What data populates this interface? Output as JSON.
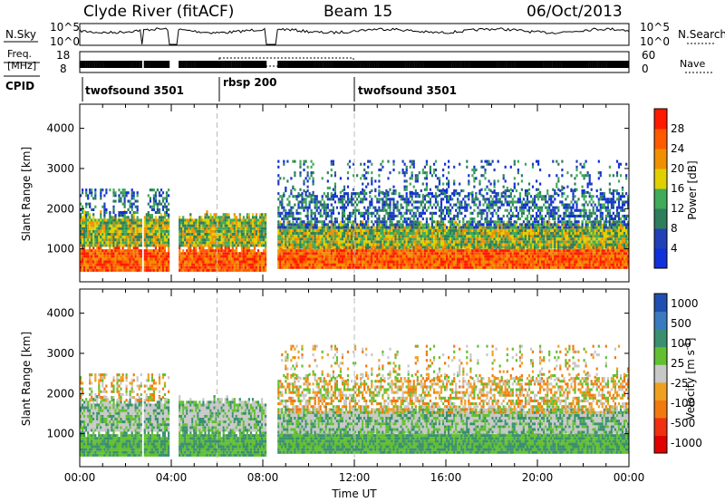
{
  "header": {
    "station": "Clyde River (fitACF)",
    "beam": "Beam 15",
    "date": "06/Oct/2013"
  },
  "noise_panel": {
    "left_label": "N.Sky",
    "right_label": "N.Search",
    "left_ticks": [
      "10^5",
      "10^0"
    ],
    "right_ticks": [
      "10^5",
      "10^0"
    ]
  },
  "freq_panel": {
    "left_label_line1": "Freq.",
    "left_label_line2": "[MHz]",
    "left_ticks": [
      "18",
      "8"
    ],
    "right_ticks": [
      "60",
      "0"
    ],
    "right_label": "Nave"
  },
  "cpid": {
    "label": "CPID",
    "segments": [
      {
        "name": "twofsound 3501",
        "start_hour": 0,
        "end_hour": 6
      },
      {
        "name": "rbsp 200",
        "start_hour": 6,
        "end_hour": 12
      },
      {
        "name": "twofsound 3501",
        "start_hour": 12,
        "end_hour": 24
      }
    ]
  },
  "chart_data": [
    {
      "type": "heatmap",
      "name": "power",
      "ylabel": "Slant Range [km]",
      "xlim_hours": [
        0,
        24
      ],
      "ylim_km": [
        180,
        4600
      ],
      "y_ticks": [
        1000,
        2000,
        3000,
        4000
      ],
      "colorbar": {
        "label": "Power [dB]",
        "ticks": [
          "4",
          "8",
          "12",
          "16",
          "20",
          "24",
          "28"
        ],
        "colors": [
          "#1030d8",
          "#2040b8",
          "#2e7d5c",
          "#3faa58",
          "#e0d000",
          "#f09000",
          "#ff5a00",
          "#ff1a00"
        ]
      },
      "data_gaps_hours": [
        [
          2.7,
          2.8
        ],
        [
          3.9,
          4.3
        ],
        [
          8.1,
          8.6
        ]
      ]
    },
    {
      "type": "heatmap",
      "name": "velocity",
      "ylabel": "Slant Range [km]",
      "xlabel": "Time UT",
      "xlim_hours": [
        0,
        24
      ],
      "ylim_km": [
        180,
        4600
      ],
      "y_ticks": [
        1000,
        2000,
        3000,
        4000
      ],
      "x_tick_labels": [
        "00:00",
        "04:00",
        "08:00",
        "12:00",
        "16:00",
        "20:00",
        "00:00"
      ],
      "x_tick_hours": [
        0,
        4,
        8,
        12,
        16,
        20,
        24
      ],
      "colorbar": {
        "label": "Velocity [m s^-1]",
        "ticks": [
          "1000",
          "500",
          "100",
          "25",
          "-25",
          "-100",
          "-500",
          "-1000"
        ],
        "colors": [
          "#1f4fb0",
          "#3a7ac0",
          "#3a8f70",
          "#62c030",
          "#c8c8c8",
          "#f0a020",
          "#f07a10",
          "#f03010",
          "#e00000"
        ]
      },
      "data_gaps_hours": [
        [
          2.7,
          2.8
        ],
        [
          3.9,
          4.3
        ],
        [
          8.1,
          8.6
        ]
      ]
    }
  ]
}
